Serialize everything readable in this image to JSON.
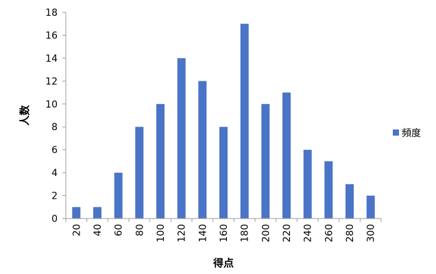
{
  "chart_data": {
    "type": "bar",
    "categories": [
      "20",
      "40",
      "60",
      "80",
      "100",
      "120",
      "140",
      "160",
      "180",
      "200",
      "220",
      "240",
      "260",
      "280",
      "300"
    ],
    "series": [
      {
        "name": "頻度",
        "values": [
          1,
          1,
          4,
          8,
          10,
          14,
          12,
          8,
          17,
          10,
          11,
          6,
          5,
          3,
          2
        ]
      }
    ],
    "xlabel": "得点",
    "ylabel": "人数",
    "ylim": [
      0,
      18
    ],
    "yticks": [
      0,
      2,
      4,
      6,
      8,
      10,
      12,
      14,
      16,
      18
    ],
    "grid": false,
    "legend_position": "right",
    "colors": {
      "bar": "#4a74c6",
      "axis": "#9a9a9a"
    }
  }
}
